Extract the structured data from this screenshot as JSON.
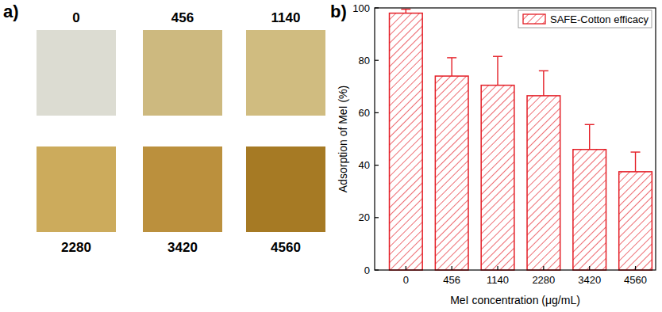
{
  "figure": {
    "panel_labels": [
      "a)",
      "b)"
    ]
  },
  "swatches": {
    "labels": [
      "0",
      "456",
      "1140",
      "2280",
      "3420",
      "4560"
    ],
    "colors": [
      "#dcdcd2",
      "#cdb97f",
      "#d0bc80",
      "#ccab5c",
      "#bb903d",
      "#a67a24"
    ]
  },
  "chart_data": {
    "type": "bar",
    "xlabel": "MeI concentration (μg/mL)",
    "ylabel": "Adsorption of MeI (%)",
    "categories": [
      "0",
      "456",
      "1140",
      "2280",
      "3420",
      "4560"
    ],
    "series": [
      {
        "name": "SAFE-Cotton efficacy",
        "color": "#e41e26",
        "values": [
          98,
          74,
          70.5,
          66.5,
          46,
          37.5
        ],
        "errors": [
          1.5,
          7,
          11,
          9.5,
          9.5,
          7.5
        ]
      }
    ],
    "ylim": [
      0,
      100
    ],
    "yticks": [
      0,
      20,
      40,
      60,
      80,
      100
    ],
    "grid": false,
    "legend": "upper right"
  }
}
